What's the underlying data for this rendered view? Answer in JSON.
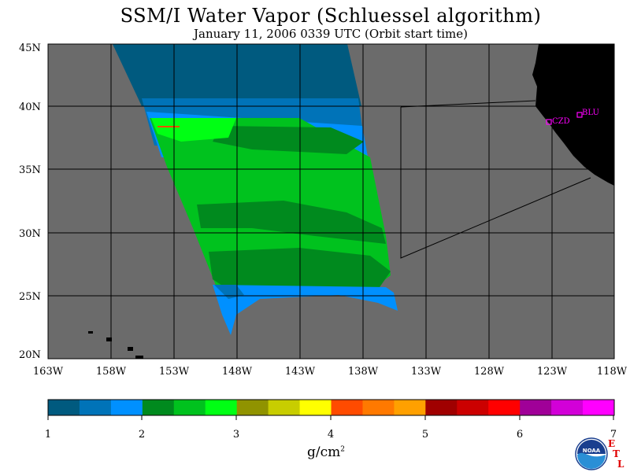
{
  "header": {
    "title": "SSM/I Water Vapor (Schluessel algorithm)",
    "subtitle": "January 11, 2006  0339 UTC  (Orbit start time)"
  },
  "map": {
    "lat_labels": [
      "45N",
      "40N",
      "35N",
      "30N",
      "25N",
      "20N"
    ],
    "lon_labels": [
      "163W",
      "158W",
      "153W",
      "148W",
      "143W",
      "138W",
      "133W",
      "128W",
      "123W",
      "118W"
    ],
    "stations": [
      {
        "code": "CZD"
      },
      {
        "code": "BLU"
      }
    ],
    "colors": {
      "ocean_no_data": "#6b6b6b",
      "land": "#000000",
      "grid": "#000000",
      "station": "#ff00ff"
    }
  },
  "colorbar": {
    "tick_labels": [
      "1",
      "2",
      "3",
      "4",
      "5",
      "6",
      "7"
    ],
    "unit_label": "g/cm",
    "unit_exponent": "2",
    "colors": [
      "#005a7f",
      "#0073b8",
      "#0090ff",
      "#008a1e",
      "#00c21e",
      "#00ff14",
      "#909300",
      "#c8cd00",
      "#ffff00",
      "#ff4b00",
      "#ff7900",
      "#ffa000",
      "#a00000",
      "#cc0000",
      "#ff0000",
      "#a00098",
      "#d200d8",
      "#ff00ff"
    ]
  },
  "logo": {
    "noaa_text": "NOAA",
    "etl_letters": [
      "E",
      "T",
      "L"
    ]
  }
}
